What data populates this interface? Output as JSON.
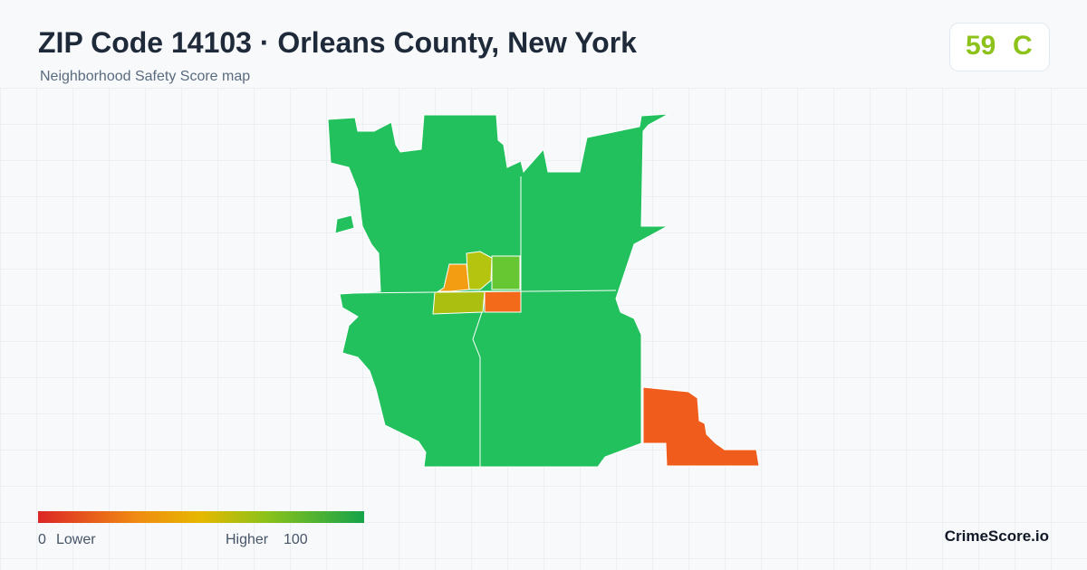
{
  "header": {
    "title": "ZIP Code 14103 · Orleans County, New York",
    "subtitle": "Neighborhood Safety Score map"
  },
  "score": {
    "value": "59",
    "grade": "C"
  },
  "legend": {
    "min": "0",
    "min_label": "Lower",
    "max_label": "Higher",
    "max": "100"
  },
  "brand": "CrimeScore.io"
}
